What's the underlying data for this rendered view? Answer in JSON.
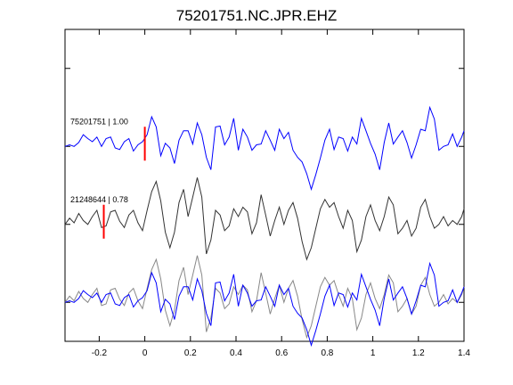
{
  "chart_data": {
    "type": "line",
    "title": "75201751.NC.JPR.EHZ",
    "xlabel": "",
    "ylabel": "",
    "xlim": [
      -0.35,
      1.4
    ],
    "x_ticks": [
      -0.2,
      0,
      0.2,
      0.4,
      0.6,
      0.8,
      1,
      1.2,
      1.4
    ],
    "x_tick_labels": [
      "-0.2",
      "0",
      "0.2",
      "0.4",
      "0.6",
      "0.8",
      "1",
      "1.2",
      "1.4"
    ],
    "ylim": [
      -0.5,
      3.5
    ],
    "grid": false,
    "colors": {
      "template": "#0000ff",
      "match": "#333333",
      "overlay_match": "#888888",
      "pick": "#ff0000"
    },
    "traces": [
      {
        "label": "75201751 | 1.00",
        "color": "template",
        "offset": 2.0,
        "pick_time": 0.0,
        "x": [
          -0.35,
          -0.33,
          -0.31,
          -0.29,
          -0.27,
          -0.25,
          -0.23,
          -0.21,
          -0.19,
          -0.17,
          -0.15,
          -0.13,
          -0.11,
          -0.09,
          -0.07,
          -0.05,
          -0.03,
          -0.01,
          0.01,
          0.03,
          0.05,
          0.07,
          0.09,
          0.11,
          0.13,
          0.15,
          0.17,
          0.19,
          0.21,
          0.23,
          0.25,
          0.27,
          0.29,
          0.31,
          0.33,
          0.35,
          0.37,
          0.39,
          0.41,
          0.43,
          0.45,
          0.47,
          0.49,
          0.51,
          0.53,
          0.55,
          0.57,
          0.59,
          0.61,
          0.63,
          0.65,
          0.67,
          0.69,
          0.71,
          0.73,
          0.75,
          0.77,
          0.79,
          0.81,
          0.83,
          0.85,
          0.87,
          0.89,
          0.91,
          0.93,
          0.95,
          0.97,
          0.99,
          1.01,
          1.03,
          1.05,
          1.07,
          1.09,
          1.11,
          1.13,
          1.15,
          1.17,
          1.19,
          1.21,
          1.23,
          1.25,
          1.27,
          1.29,
          1.31,
          1.33,
          1.35,
          1.37,
          1.39,
          1.4
        ],
        "y": [
          0.0,
          0.02,
          0.0,
          0.05,
          0.15,
          0.1,
          0.06,
          0.12,
          0.0,
          0.1,
          0.12,
          -0.02,
          -0.04,
          0.06,
          0.1,
          -0.06,
          0.02,
          0.06,
          0.15,
          0.38,
          0.25,
          -0.12,
          0.04,
          -0.02,
          -0.22,
          0.08,
          0.2,
          0.2,
          0.03,
          0.3,
          0.15,
          -0.14,
          -0.3,
          0.25,
          0.26,
          0.02,
          0.12,
          0.36,
          -0.05,
          0.22,
          0.12,
          -0.05,
          0.02,
          0.03,
          0.2,
          0.08,
          -0.05,
          0.22,
          0.1,
          0.18,
          -0.05,
          -0.14,
          -0.2,
          -0.35,
          -0.55,
          -0.36,
          -0.15,
          0.08,
          0.22,
          -0.04,
          0.12,
          0.1,
          -0.06,
          0.12,
          0.03,
          0.36,
          0.2,
          0.04,
          -0.1,
          -0.3,
          0.05,
          0.3,
          0.03,
          0.12,
          0.2,
          0.05,
          -0.15,
          0.02,
          0.22,
          0.2,
          0.5,
          0.35,
          -0.05,
          0.0,
          0.02,
          0.16,
          0.0,
          0.12,
          0.2
        ]
      },
      {
        "label": "21248644 | 0.78",
        "color": "match",
        "offset": 1.0,
        "pick_time": -0.18,
        "x": [
          -0.35,
          -0.33,
          -0.31,
          -0.29,
          -0.27,
          -0.25,
          -0.23,
          -0.21,
          -0.19,
          -0.17,
          -0.15,
          -0.13,
          -0.11,
          -0.09,
          -0.07,
          -0.05,
          -0.03,
          -0.01,
          0.01,
          0.03,
          0.05,
          0.07,
          0.09,
          0.11,
          0.13,
          0.15,
          0.17,
          0.19,
          0.21,
          0.23,
          0.25,
          0.27,
          0.29,
          0.31,
          0.33,
          0.35,
          0.37,
          0.39,
          0.41,
          0.43,
          0.45,
          0.47,
          0.49,
          0.51,
          0.53,
          0.55,
          0.57,
          0.59,
          0.61,
          0.63,
          0.65,
          0.67,
          0.69,
          0.71,
          0.73,
          0.75,
          0.77,
          0.79,
          0.81,
          0.83,
          0.85,
          0.87,
          0.89,
          0.91,
          0.93,
          0.95,
          0.97,
          0.99,
          1.01,
          1.03,
          1.05,
          1.07,
          1.09,
          1.11,
          1.13,
          1.15,
          1.17,
          1.19,
          1.21,
          1.23,
          1.25,
          1.27,
          1.29,
          1.31,
          1.33,
          1.35,
          1.37,
          1.39,
          1.4
        ],
        "y": [
          0.0,
          0.08,
          0.02,
          0.14,
          0.05,
          0.0,
          0.1,
          0.18,
          -0.04,
          -0.02,
          0.16,
          0.18,
          0.04,
          -0.04,
          0.12,
          0.18,
          0.02,
          -0.08,
          0.18,
          0.42,
          0.55,
          0.3,
          -0.1,
          -0.3,
          -0.1,
          0.28,
          0.45,
          0.1,
          0.35,
          0.6,
          0.35,
          -0.38,
          -0.2,
          0.18,
          0.12,
          -0.08,
          -0.02,
          0.2,
          0.1,
          0.22,
          0.16,
          -0.12,
          0.02,
          0.38,
          0.12,
          -0.15,
          0.05,
          0.22,
          0.0,
          0.18,
          0.28,
          0.08,
          -0.22,
          -0.45,
          -0.3,
          -0.05,
          0.2,
          0.32,
          0.22,
          0.28,
          0.1,
          -0.05,
          0.18,
          0.05,
          -0.35,
          -0.2,
          0.1,
          0.25,
          0.05,
          -0.08,
          0.1,
          0.35,
          0.25,
          -0.12,
          -0.05,
          0.05,
          -0.15,
          -0.05,
          0.22,
          0.32,
          0.1,
          -0.05,
          0.0,
          0.1,
          -0.02,
          0.05,
          0.0,
          0.1,
          0.2
        ]
      }
    ]
  }
}
